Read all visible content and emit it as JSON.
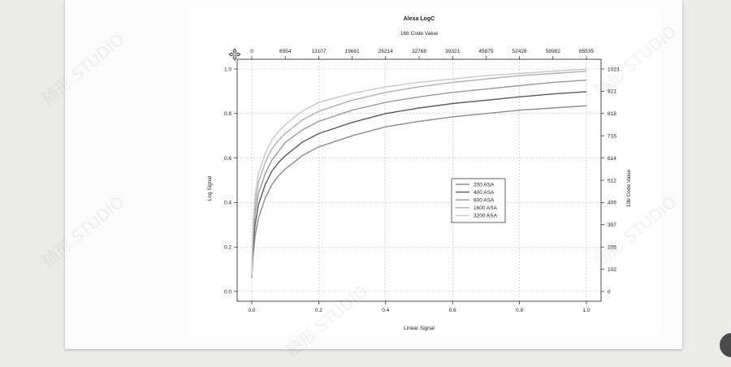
{
  "chart_data": {
    "type": "line",
    "title": "Alexa LogC",
    "x_top_label": "16b Code Value",
    "xlabel": "Linear Signal",
    "ylabel": "Log Signal",
    "y_right_label": "10b Code Value",
    "xlim": [
      0,
      1
    ],
    "ylim": [
      0,
      1
    ],
    "x_ticks": [
      "0.0",
      "0.2",
      "0.4",
      "0.6",
      "0.8",
      "1.0"
    ],
    "y_ticks": [
      "0.0",
      "0.2",
      "0.4",
      "0.6",
      "0.8",
      "1.0"
    ],
    "top_ticks": [
      "0",
      "6554",
      "13107",
      "19661",
      "26214",
      "32768",
      "39321",
      "45875",
      "52428",
      "58982",
      "65535"
    ],
    "right_ticks": [
      "0",
      "102",
      "205",
      "307",
      "409",
      "512",
      "614",
      "716",
      "818",
      "921",
      "1023"
    ],
    "grid": true,
    "legend_position": "center-right",
    "x": [
      0,
      0.0025,
      0.005,
      0.01,
      0.02,
      0.04,
      0.06,
      0.08,
      0.1,
      0.15,
      0.2,
      0.3,
      0.4,
      0.5,
      0.6,
      0.7,
      0.8,
      0.9,
      1.0
    ],
    "series": [
      {
        "name": "200 ASA",
        "color": "#8c8c8c",
        "values": [
          0.06,
          0.13,
          0.18,
          0.25,
          0.33,
          0.42,
          0.48,
          0.52,
          0.55,
          0.61,
          0.65,
          0.7,
          0.74,
          0.765,
          0.785,
          0.8,
          0.815,
          0.825,
          0.835
        ]
      },
      {
        "name": "400 ASA",
        "color": "#5a5a5a",
        "values": [
          0.06,
          0.16,
          0.22,
          0.3,
          0.39,
          0.48,
          0.54,
          0.58,
          0.61,
          0.67,
          0.71,
          0.76,
          0.8,
          0.825,
          0.845,
          0.86,
          0.875,
          0.888,
          0.898
        ]
      },
      {
        "name": "800 ASA",
        "color": "#9a9a9a",
        "values": [
          0.06,
          0.19,
          0.26,
          0.35,
          0.44,
          0.53,
          0.59,
          0.63,
          0.67,
          0.725,
          0.765,
          0.815,
          0.85,
          0.875,
          0.895,
          0.91,
          0.925,
          0.94,
          0.95
        ]
      },
      {
        "name": "1600 ASA",
        "color": "#afafaf",
        "values": [
          0.06,
          0.22,
          0.3,
          0.39,
          0.49,
          0.58,
          0.64,
          0.68,
          0.71,
          0.77,
          0.81,
          0.86,
          0.895,
          0.92,
          0.94,
          0.955,
          0.97,
          0.98,
          0.99
        ]
      },
      {
        "name": "3200 ASA",
        "color": "#c8c8c8",
        "values": [
          0.06,
          0.25,
          0.33,
          0.43,
          0.53,
          0.62,
          0.68,
          0.72,
          0.75,
          0.81,
          0.85,
          0.89,
          0.92,
          0.94,
          0.955,
          0.97,
          0.98,
          0.99,
          1.0
        ]
      }
    ]
  },
  "watermark": "随形 STUDIO"
}
